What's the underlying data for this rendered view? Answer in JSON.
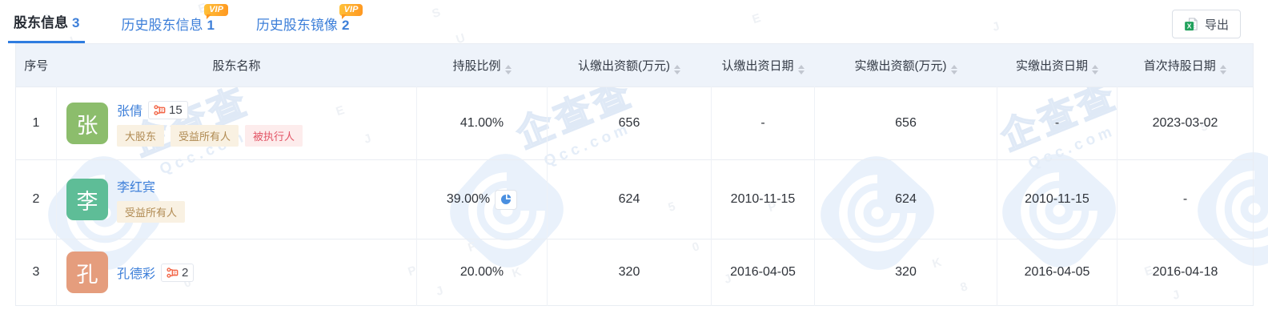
{
  "tabs": [
    {
      "label": "股东信息",
      "count": "3",
      "active": true,
      "vip": false
    },
    {
      "label": "历史股东信息",
      "count": "1",
      "active": false,
      "vip": true
    },
    {
      "label": "历史股东镜像",
      "count": "2",
      "active": false,
      "vip": true
    }
  ],
  "vip_label": "VIP",
  "export_button": {
    "label": "导出",
    "icon": "excel-icon"
  },
  "table": {
    "columns": [
      {
        "label": "序号",
        "sortable": false
      },
      {
        "label": "股东名称",
        "sortable": false
      },
      {
        "label": "持股比例",
        "sortable": true
      },
      {
        "label": "认缴出资额(万元)",
        "sortable": true
      },
      {
        "label": "认缴出资日期",
        "sortable": true
      },
      {
        "label": "实缴出资额(万元)",
        "sortable": true
      },
      {
        "label": "实缴出资日期",
        "sortable": true
      },
      {
        "label": "首次持股日期",
        "sortable": true
      }
    ],
    "rows": [
      {
        "index": "1",
        "name": "张倩",
        "avatar_char": "张",
        "avatar_color": "#8cbd6c",
        "related_count": "15",
        "tags": [
          {
            "label": "大股东",
            "type": "warm"
          },
          {
            "label": "受益所有人",
            "type": "warm"
          },
          {
            "label": "被执行人",
            "type": "danger"
          }
        ],
        "ratio": "41.00%",
        "subscribed_amount": "656",
        "subscribed_date": "-",
        "paid_amount": "656",
        "paid_date": "-",
        "first_date": "2023-03-02"
      },
      {
        "index": "2",
        "name": "李红宾",
        "avatar_char": "李",
        "avatar_color": "#5ebd97",
        "related_count": null,
        "tags": [
          {
            "label": "受益所有人",
            "type": "warm"
          }
        ],
        "ratio": "39.00%",
        "subscribed_amount": "624",
        "subscribed_date": "2010-11-15",
        "paid_amount": "624",
        "paid_date": "2010-11-15",
        "first_date": "-"
      },
      {
        "index": "3",
        "name": "孔德彩",
        "avatar_char": "孔",
        "avatar_color": "#e59d7d",
        "related_count": "2",
        "tags": [],
        "ratio": "20.00%",
        "subscribed_amount": "320",
        "subscribed_date": "2016-04-05",
        "paid_amount": "320",
        "paid_date": "2016-04-05",
        "first_date": "2016-04-18"
      }
    ]
  },
  "watermark": {
    "brand": "企查查",
    "domain": "Qcc.com",
    "noise": [
      "8",
      "L",
      "E",
      "S",
      "U",
      "E",
      "J",
      "B",
      "E",
      "J",
      "P",
      "K",
      "0",
      "P",
      "J",
      "F",
      "K",
      "5",
      "0",
      "J",
      "P",
      "K",
      "8",
      "E",
      "J",
      "5"
    ]
  },
  "colors": {
    "accent_blue": "#3d7fd9",
    "active_underline": "#2e7ce0",
    "vip_orange": "#ff9720",
    "header_bg": "#eef3fa",
    "tag_warm_text": "#b08a52",
    "tag_danger_text": "#e25465",
    "excel_green": "#21a15c",
    "badge_icon_orange": "#f2684a",
    "watermark_blue": "#e9f1fb"
  }
}
